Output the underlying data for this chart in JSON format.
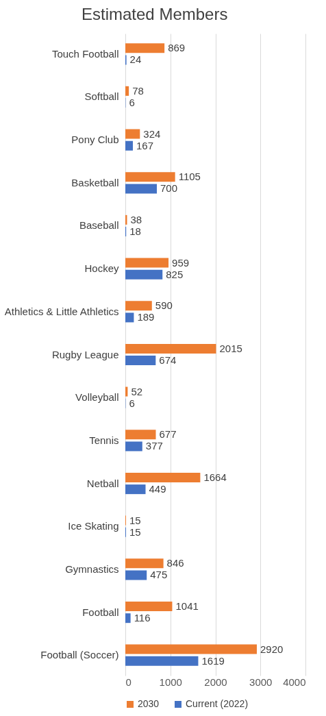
{
  "chart_data": {
    "type": "bar",
    "orientation": "horizontal",
    "title": "Estimated Members",
    "categories": [
      "Touch Football",
      "Softball",
      "Pony Club",
      "Basketball",
      "Baseball",
      "Hockey",
      "Athletics & Little Athletics",
      "Rugby League",
      "Volleyball",
      "Tennis",
      "Netball",
      "Ice Skating",
      "Gymnastics",
      "Football",
      "Football (Soccer)"
    ],
    "series": [
      {
        "name": "2030",
        "color": "#ed7d31",
        "values": [
          869,
          78,
          324,
          1105,
          38,
          959,
          590,
          2015,
          52,
          677,
          1664,
          15,
          846,
          1041,
          2920
        ]
      },
      {
        "name": "Current (2022)",
        "color": "#4472c4",
        "values": [
          24,
          6,
          167,
          700,
          18,
          825,
          189,
          674,
          6,
          377,
          449,
          15,
          475,
          116,
          1619
        ]
      }
    ],
    "xlim": [
      0,
      4000
    ],
    "xticks": [
      0,
      1000,
      2000,
      3000,
      4000
    ],
    "grid": "x",
    "legend": "bottom",
    "data_labels": true
  }
}
